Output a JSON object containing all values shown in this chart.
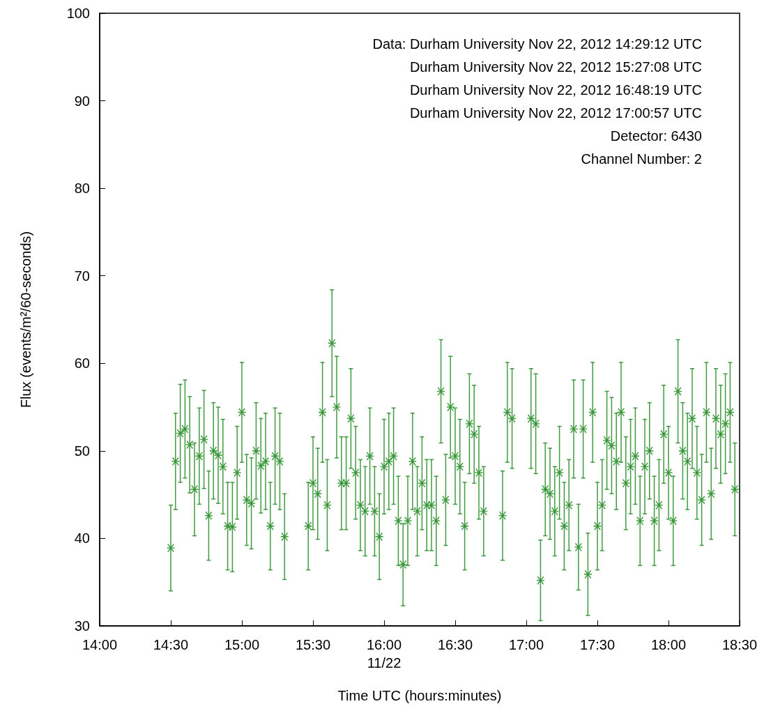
{
  "chart_data": {
    "type": "scatter",
    "xlabel": "Time UTC (hours:minutes)",
    "ylabel": "Flux (events/m²/60-seconds)",
    "annotations": [
      "Data: Durham University Nov 22, 2012 14:29:12 UTC",
      "Durham University Nov 22, 2012 15:27:08 UTC",
      "Durham University Nov 22, 2012 16:48:19 UTC",
      "Durham University Nov 22, 2012 17:00:57 UTC",
      "Detector: 6430",
      "Channel Number: 2"
    ],
    "x": [
      "2012-11-22T14:30",
      "2012-11-22T14:32",
      "2012-11-22T14:34",
      "2012-11-22T14:36",
      "2012-11-22T14:38",
      "2012-11-22T14:40",
      "2012-11-22T14:42",
      "2012-11-22T14:44",
      "2012-11-22T14:46",
      "2012-11-22T14:48",
      "2012-11-22T14:50",
      "2012-11-22T14:52",
      "2012-11-22T14:54",
      "2012-11-22T14:56",
      "2012-11-22T14:58",
      "2012-11-22T15:00",
      "2012-11-22T15:02",
      "2012-11-22T15:04",
      "2012-11-22T15:06",
      "2012-11-22T15:08",
      "2012-11-22T15:10",
      "2012-11-22T15:12",
      "2012-11-22T15:14",
      "2012-11-22T15:16",
      "2012-11-22T15:18",
      "2012-11-22T15:28",
      "2012-11-22T15:30",
      "2012-11-22T15:32",
      "2012-11-22T15:34",
      "2012-11-22T15:36",
      "2012-11-22T15:38",
      "2012-11-22T15:40",
      "2012-11-22T15:42",
      "2012-11-22T15:44",
      "2012-11-22T15:46",
      "2012-11-22T15:48",
      "2012-11-22T15:50",
      "2012-11-22T15:52",
      "2012-11-22T15:54",
      "2012-11-22T15:56",
      "2012-11-22T15:58",
      "2012-11-22T16:00",
      "2012-11-22T16:02",
      "2012-11-22T16:04",
      "2012-11-22T16:06",
      "2012-11-22T16:08",
      "2012-11-22T16:10",
      "2012-11-22T16:12",
      "2012-11-22T16:14",
      "2012-11-22T16:16",
      "2012-11-22T16:18",
      "2012-11-22T16:20",
      "2012-11-22T16:22",
      "2012-11-22T16:24",
      "2012-11-22T16:26",
      "2012-11-22T16:28",
      "2012-11-22T16:30",
      "2012-11-22T16:32",
      "2012-11-22T16:34",
      "2012-11-22T16:36",
      "2012-11-22T16:38",
      "2012-11-22T16:40",
      "2012-11-22T16:42",
      "2012-11-22T16:50",
      "2012-11-22T16:52",
      "2012-11-22T16:54",
      "2012-11-22T17:02",
      "2012-11-22T17:04",
      "2012-11-22T17:06",
      "2012-11-22T17:08",
      "2012-11-22T17:10",
      "2012-11-22T17:12",
      "2012-11-22T17:14",
      "2012-11-22T17:16",
      "2012-11-22T17:18",
      "2012-11-22T17:20",
      "2012-11-22T17:22",
      "2012-11-22T17:24",
      "2012-11-22T17:26",
      "2012-11-22T17:28",
      "2012-11-22T17:30",
      "2012-11-22T17:32",
      "2012-11-22T17:34",
      "2012-11-22T17:36",
      "2012-11-22T17:38",
      "2012-11-22T17:40",
      "2012-11-22T17:42",
      "2012-11-22T17:44",
      "2012-11-22T17:46",
      "2012-11-22T17:48",
      "2012-11-22T17:50",
      "2012-11-22T17:52",
      "2012-11-22T17:54",
      "2012-11-22T17:56",
      "2012-11-22T17:58",
      "2012-11-22T18:00",
      "2012-11-22T18:02",
      "2012-11-22T18:04",
      "2012-11-22T18:06",
      "2012-11-22T18:08",
      "2012-11-22T18:10",
      "2012-11-22T18:12",
      "2012-11-22T18:14",
      "2012-11-22T18:16",
      "2012-11-22T18:18",
      "2012-11-22T18:20",
      "2012-11-22T18:22",
      "2012-11-22T18:24",
      "2012-11-22T18:26",
      "2012-11-22T18:28"
    ],
    "series": [
      {
        "color": "#1f8a1f",
        "values": [
          38.9,
          48.8,
          52.0,
          52.5,
          50.7,
          45.6,
          49.4,
          51.3,
          42.6,
          50.0,
          49.5,
          48.2,
          41.4,
          41.3,
          47.5,
          54.4,
          44.4,
          44.0,
          50.0,
          48.3,
          48.8,
          41.4,
          49.4,
          48.8,
          40.2,
          41.4,
          46.3,
          45.1,
          54.4,
          43.8,
          62.3,
          55.0,
          46.3,
          46.3,
          53.7,
          47.5,
          43.8,
          43.1,
          49.4,
          43.1,
          40.2,
          48.2,
          48.8,
          49.4,
          42.0,
          37.0,
          42.0,
          48.8,
          43.1,
          46.3,
          43.8,
          43.8,
          42.0,
          56.8,
          44.4,
          55.0,
          49.4,
          48.2,
          41.4,
          53.1,
          51.9,
          47.5,
          43.1,
          42.6,
          54.4,
          53.7,
          53.7,
          53.1,
          35.2,
          45.6,
          45.1,
          43.1,
          47.5,
          41.4,
          43.8,
          52.5,
          39.0,
          52.5,
          35.9,
          54.4,
          41.4,
          43.8,
          51.2,
          50.6,
          48.8,
          54.4,
          46.3,
          48.2,
          49.4,
          42.0,
          48.2,
          50.0,
          42.0,
          43.8,
          51.9,
          47.5,
          42.0,
          56.8,
          50.0,
          48.8,
          53.7,
          47.5,
          44.4,
          54.4,
          45.1,
          53.7,
          51.9,
          53.1,
          54.4,
          45.6
        ],
        "errors": [
          4.9,
          5.5,
          5.6,
          5.6,
          5.5,
          5.3,
          5.5,
          5.6,
          5.1,
          5.5,
          5.5,
          5.4,
          5.0,
          5.1,
          5.3,
          5.7,
          5.2,
          5.2,
          5.5,
          5.4,
          5.5,
          5.0,
          5.5,
          5.5,
          4.9,
          5.0,
          5.3,
          5.2,
          5.7,
          5.2,
          6.1,
          5.8,
          5.3,
          5.3,
          5.7,
          5.3,
          5.2,
          5.1,
          5.5,
          5.1,
          4.9,
          5.4,
          5.5,
          5.5,
          5.1,
          4.7,
          5.1,
          5.5,
          5.1,
          5.3,
          5.2,
          5.2,
          5.1,
          5.9,
          5.2,
          5.8,
          5.5,
          5.4,
          5.0,
          5.7,
          5.6,
          5.3,
          5.1,
          5.1,
          5.7,
          5.7,
          5.7,
          5.7,
          4.6,
          5.3,
          5.2,
          5.1,
          5.3,
          5.0,
          5.2,
          5.6,
          4.9,
          5.6,
          4.7,
          5.7,
          5.0,
          5.2,
          5.6,
          5.5,
          5.5,
          5.7,
          5.3,
          5.4,
          5.5,
          5.1,
          5.4,
          5.5,
          5.1,
          5.2,
          5.6,
          5.3,
          5.1,
          5.9,
          5.5,
          5.5,
          5.7,
          5.3,
          5.2,
          5.7,
          5.2,
          5.7,
          5.6,
          5.7,
          5.7,
          5.3
        ]
      }
    ],
    "xlim": [
      "2012-11-22T14:00",
      "2012-11-22T18:30"
    ],
    "xticks": [
      {
        "value": "2012-11-22T14:00",
        "label": "14:00"
      },
      {
        "value": "2012-11-22T14:30",
        "label": "14:30"
      },
      {
        "value": "2012-11-22T15:00",
        "label": "15:00"
      },
      {
        "value": "2012-11-22T15:30",
        "label": "15:30"
      },
      {
        "value": "2012-11-22T16:00",
        "label": "16:00\n11/22"
      },
      {
        "value": "2012-11-22T16:30",
        "label": "16:30"
      },
      {
        "value": "2012-11-22T17:00",
        "label": "17:00"
      },
      {
        "value": "2012-11-22T17:30",
        "label": "17:30"
      },
      {
        "value": "2012-11-22T18:00",
        "label": "18:00"
      },
      {
        "value": "2012-11-22T18:30",
        "label": "18:30"
      }
    ],
    "ylim": [
      30,
      100
    ],
    "yticks": [
      30,
      40,
      50,
      60,
      70,
      80,
      90,
      100
    ],
    "marker": "cross",
    "grid": false
  }
}
